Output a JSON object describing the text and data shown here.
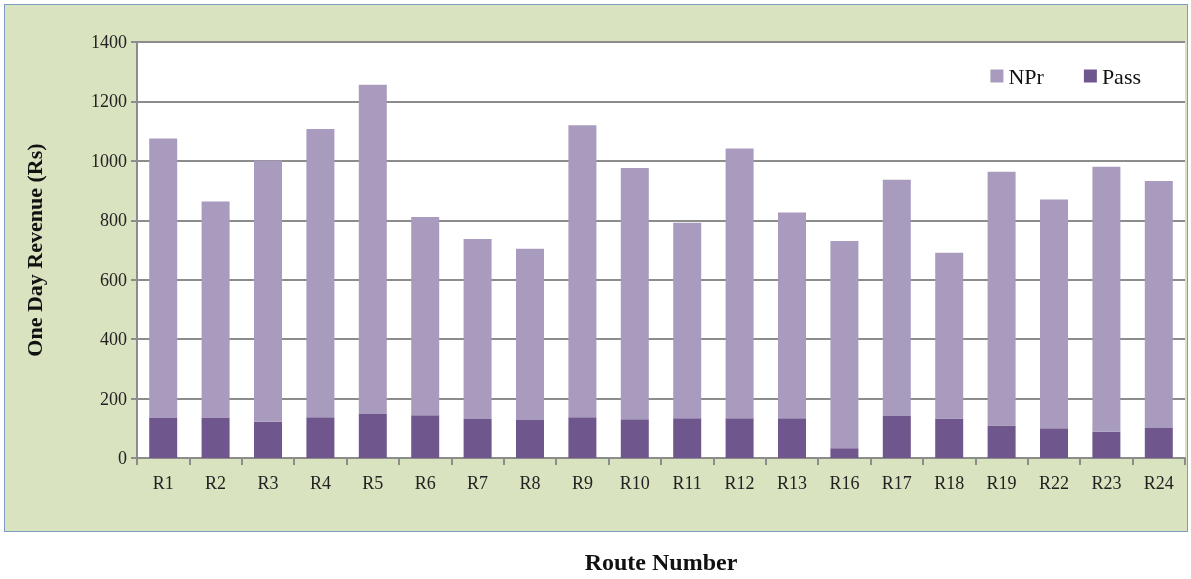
{
  "chart_data": {
    "type": "bar",
    "stacked": true,
    "xlabel": "Route Number",
    "ylabel": "One Day Revenue (Rs)",
    "categories": [
      "R1",
      "R2",
      "R3",
      "R4",
      "R5",
      "R6",
      "R7",
      "R8",
      "R9",
      "R10",
      "R11",
      "R12",
      "R13",
      "R16",
      "R17",
      "R18",
      "R19",
      "R22",
      "R23",
      "R24"
    ],
    "series": [
      {
        "name": "Pass",
        "color": "#6f578e",
        "values": [
          135,
          135,
          122,
          137,
          148,
          144,
          131,
          128,
          137,
          130,
          134,
          134,
          134,
          33,
          141,
          133,
          109,
          100,
          89,
          103
        ]
      },
      {
        "name": "NPr",
        "color": "#a89bbd",
        "values": [
          940,
          728,
          879,
          970,
          1108,
          667,
          606,
          576,
          983,
          846,
          658,
          908,
          692,
          697,
          795,
          558,
          854,
          770,
          891,
          829
        ]
      }
    ],
    "ylim": [
      0,
      1400
    ],
    "yticks": [
      0,
      200,
      400,
      600,
      800,
      1000,
      1200,
      1400
    ],
    "grid": "y",
    "legend": "top right"
  }
}
